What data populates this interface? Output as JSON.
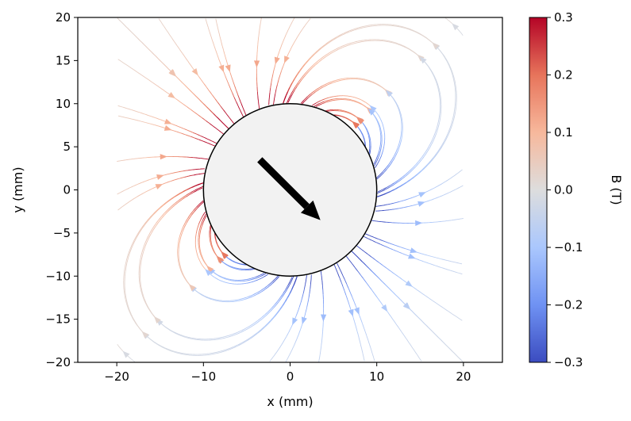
{
  "chart_data": {
    "type": "streamplot",
    "title": "",
    "xlabel": "x (mm)",
    "ylabel": "y (mm)",
    "xlim": [
      -24.5,
      24.5
    ],
    "ylim": [
      -20,
      20
    ],
    "xticks": [
      -20,
      -10,
      0,
      10,
      20
    ],
    "xtick_labels": [
      "−20",
      "−10",
      "0",
      "10",
      "20"
    ],
    "yticks": [
      -20,
      -15,
      -10,
      -5,
      0,
      5,
      10,
      15,
      20
    ],
    "ytick_labels": [
      "−20",
      "−15",
      "−10",
      "−5",
      "0",
      "5",
      "10",
      "15",
      "20"
    ],
    "field_extent": {
      "x": [
        -20,
        20
      ],
      "y": [
        -20,
        20
      ]
    },
    "grid": false,
    "magnet": {
      "shape": "circle",
      "center": [
        0,
        0
      ],
      "radius": 10,
      "fill": "#f2f2f2",
      "edge": "#000000",
      "moment_arrow": {
        "from": [
          -3.5,
          3.5
        ],
        "to": [
          3.5,
          -3.5
        ],
        "color": "#000000"
      }
    },
    "colorbar": {
      "label": "B (T)",
      "colormap": "coolwarm",
      "vmin": -0.3,
      "vmax": 0.3,
      "ticks": [
        0.3,
        0.2,
        0.1,
        0.0,
        -0.1,
        -0.2,
        -0.3
      ],
      "tick_labels": [
        "0.3",
        "0.2",
        "0.1",
        "0.0",
        "−0.1",
        "−0.2",
        "−0.3"
      ],
      "colors": [
        "#3b4cc0",
        "#6f92f3",
        "#aac7fd",
        "#dddddd",
        "#f7b89c",
        "#e7745b",
        "#b40426"
      ]
    }
  }
}
